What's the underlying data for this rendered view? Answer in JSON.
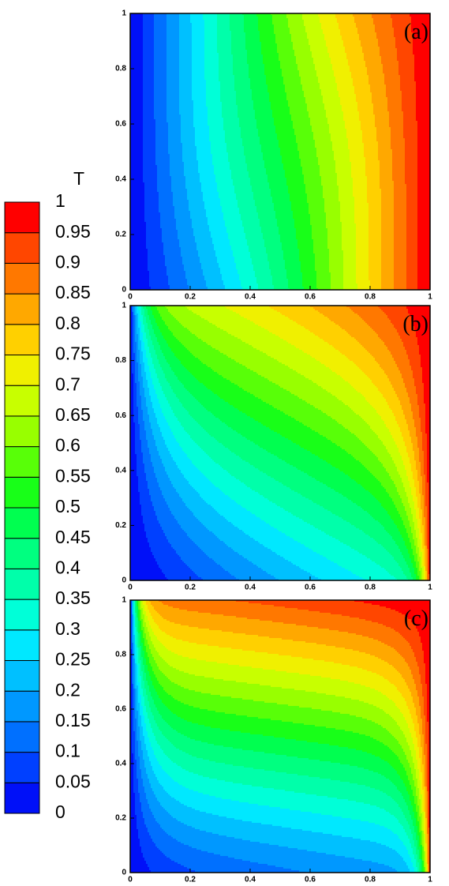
{
  "colorbar": {
    "title": "T",
    "levels": [
      0,
      0.05,
      0.1,
      0.15,
      0.2,
      0.25,
      0.3,
      0.35,
      0.4,
      0.45,
      0.5,
      0.55,
      0.6,
      0.65,
      0.7,
      0.75,
      0.8,
      0.85,
      0.9,
      0.95,
      1
    ],
    "colors": [
      "#0010f8",
      "#0040ff",
      "#0070ff",
      "#0098ff",
      "#00c0ff",
      "#00e8ff",
      "#00ffd8",
      "#00ffaa",
      "#00ff80",
      "#00ff50",
      "#18ff18",
      "#58ff08",
      "#98ff00",
      "#c8ff00",
      "#f0f000",
      "#ffd000",
      "#ffa800",
      "#ff7800",
      "#ff4600",
      "#ff0000"
    ]
  },
  "chart_data": [
    {
      "type": "contour",
      "label": "(a)",
      "xlim": [
        0,
        1
      ],
      "ylim": [
        0,
        1
      ],
      "xticks": [
        0,
        0.2,
        0.4,
        0.6,
        0.8,
        1
      ],
      "yticks": [
        0,
        0.2,
        0.4,
        0.6,
        0.8,
        1
      ]
    },
    {
      "type": "contour",
      "label": "(b)",
      "xlim": [
        0,
        1
      ],
      "ylim": [
        0,
        1
      ],
      "xticks": [
        0,
        0.2,
        0.4,
        0.6,
        0.8,
        1
      ],
      "yticks": [
        0,
        0.2,
        0.4,
        0.6,
        0.8,
        1
      ]
    },
    {
      "type": "contour",
      "label": "(c)",
      "xlim": [
        0,
        1
      ],
      "ylim": [
        0,
        1
      ],
      "xticks": [
        0,
        0.2,
        0.4,
        0.6,
        0.8,
        1
      ],
      "yticks": [
        0,
        0.2,
        0.4,
        0.6,
        0.8,
        1
      ]
    }
  ]
}
